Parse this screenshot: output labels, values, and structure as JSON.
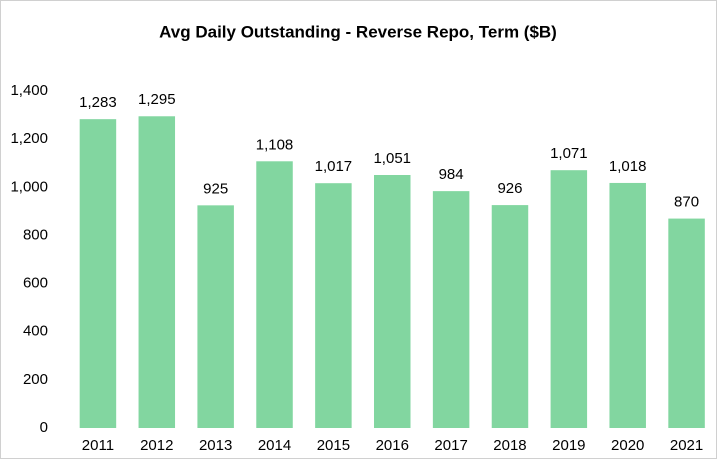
{
  "chart_data": {
    "type": "bar",
    "title": "Avg Daily Outstanding - Reverse Repo, Term ($B)",
    "categories": [
      "2011",
      "2012",
      "2013",
      "2014",
      "2015",
      "2016",
      "2017",
      "2018",
      "2019",
      "2020",
      "2021"
    ],
    "values": [
      1283,
      1295,
      925,
      1108,
      1017,
      1051,
      984,
      926,
      1071,
      1018,
      870
    ],
    "value_labels": [
      "1,283",
      "1,295",
      "925",
      "1,108",
      "1,017",
      "1,051",
      "984",
      "926",
      "1,071",
      "1,018",
      "870"
    ],
    "color": "#82d6a0",
    "ylim": [
      0,
      1400
    ],
    "yticks": [
      0,
      200,
      400,
      600,
      800,
      {
        "value": 1000,
        "label": "1,000"
      },
      {
        "value": 1200,
        "label": "1,200"
      },
      {
        "value": 1400,
        "label": "1,400"
      }
    ],
    "grid": false
  }
}
